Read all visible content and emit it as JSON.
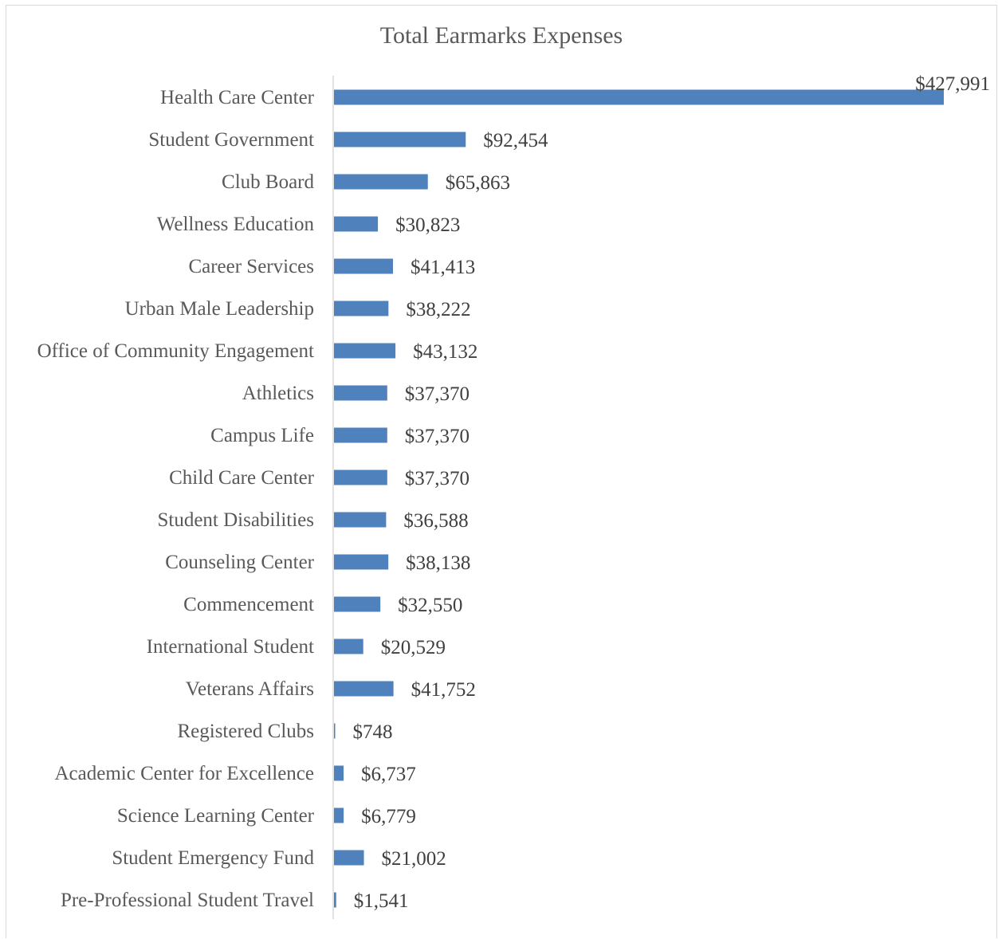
{
  "chart_data": {
    "type": "bar",
    "orientation": "horizontal",
    "title": "Total Earmarks Expenses",
    "xlabel": "",
    "ylabel": "",
    "grid": false,
    "legend": "none",
    "bar_color": "#4f81bd",
    "categories": [
      "Health Care Center",
      "Student Government",
      "Club Board",
      "Wellness Education",
      "Career Services",
      "Urban Male Leadership",
      "Office of Community Engagement",
      "Athletics",
      "Campus Life",
      "Child Care Center",
      "Student Disabilities",
      "Counseling Center",
      "Commencement",
      "International Student",
      "Veterans Affairs",
      "Registered Clubs",
      "Academic Center for Excellence",
      "Science Learning Center",
      "Student Emergency Fund",
      "Pre-Professional Student Travel"
    ],
    "values": [
      427991,
      92454,
      65863,
      30823,
      41413,
      38222,
      43132,
      37370,
      37370,
      37370,
      36588,
      38138,
      32550,
      20529,
      41752,
      748,
      6737,
      6779,
      21002,
      1541
    ],
    "data_labels": [
      "$427,991",
      "$92,454",
      "$65,863",
      "$30,823",
      "$41,413",
      "$38,222",
      "$43,132",
      "$37,370",
      "$37,370",
      "$37,370",
      "$36,588",
      "$38,138",
      "$32,550",
      "$20,529",
      "$41,752",
      "$748",
      "$6,737",
      "$6,779",
      "$21,002",
      "$1,541"
    ]
  }
}
